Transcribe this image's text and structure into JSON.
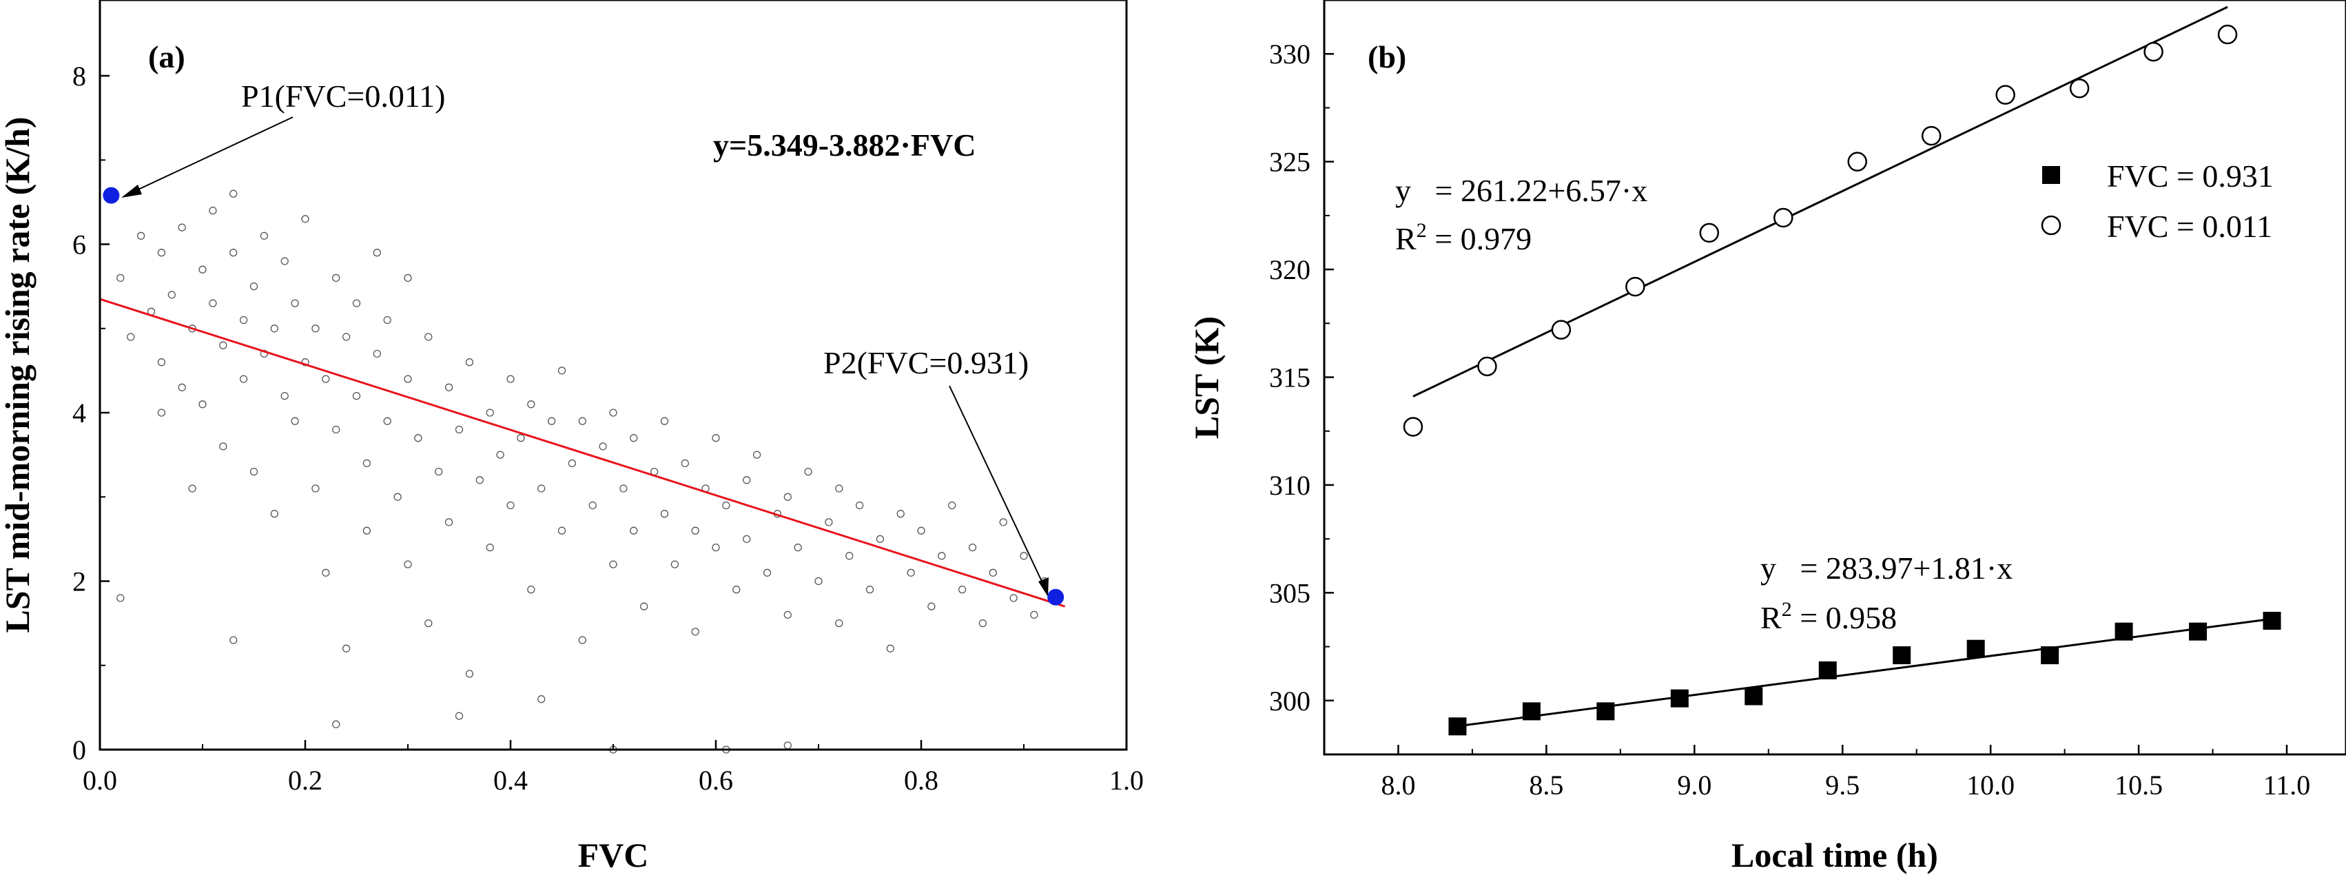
{
  "chart_data": [
    {
      "panel_label": "(a)",
      "type": "scatter",
      "xlabel": "FVC",
      "ylabel": "LST mid-morning rising rate (K/h)",
      "xlim": [
        0,
        1.0
      ],
      "ylim": [
        0,
        8.9
      ],
      "xticks": [
        "0.0",
        "0.2",
        "0.4",
        "0.6",
        "0.8",
        "1.0"
      ],
      "yticks": [
        "0",
        "2",
        "4",
        "6",
        "8"
      ],
      "fit_equation": "y=5.349-3.882·FVC",
      "fit": {
        "intercept": 5.349,
        "slope": -3.882,
        "x_range": [
          0.0,
          0.94
        ],
        "color": "#e8141c"
      },
      "marker_color": "#555555",
      "highlight_color": "#1020e0",
      "highlights": [
        {
          "label": "P1(FVC=0.011)",
          "x": 0.011,
          "y": 6.58
        },
        {
          "label": "P2(FVC=0.931)",
          "x": 0.931,
          "y": 1.81
        }
      ],
      "scatter_points": [
        [
          0.02,
          5.6
        ],
        [
          0.03,
          4.9
        ],
        [
          0.04,
          6.1
        ],
        [
          0.05,
          5.2
        ],
        [
          0.06,
          4.6
        ],
        [
          0.06,
          5.9
        ],
        [
          0.07,
          5.4
        ],
        [
          0.08,
          4.3
        ],
        [
          0.08,
          6.2
        ],
        [
          0.09,
          5.0
        ],
        [
          0.1,
          5.7
        ],
        [
          0.1,
          4.1
        ],
        [
          0.11,
          6.4
        ],
        [
          0.11,
          5.3
        ],
        [
          0.12,
          3.6
        ],
        [
          0.12,
          4.8
        ],
        [
          0.13,
          5.9
        ],
        [
          0.13,
          6.6
        ],
        [
          0.14,
          4.4
        ],
        [
          0.14,
          5.1
        ],
        [
          0.15,
          3.3
        ],
        [
          0.15,
          5.5
        ],
        [
          0.16,
          6.1
        ],
        [
          0.16,
          4.7
        ],
        [
          0.17,
          2.8
        ],
        [
          0.17,
          5.0
        ],
        [
          0.18,
          5.8
        ],
        [
          0.18,
          4.2
        ],
        [
          0.19,
          3.9
        ],
        [
          0.19,
          5.3
        ],
        [
          0.2,
          4.6
        ],
        [
          0.2,
          6.3
        ],
        [
          0.21,
          3.1
        ],
        [
          0.21,
          5.0
        ],
        [
          0.22,
          4.4
        ],
        [
          0.22,
          2.1
        ],
        [
          0.23,
          5.6
        ],
        [
          0.23,
          3.8
        ],
        [
          0.24,
          4.9
        ],
        [
          0.24,
          1.2
        ],
        [
          0.25,
          4.2
        ],
        [
          0.25,
          5.3
        ],
        [
          0.26,
          3.4
        ],
        [
          0.26,
          2.6
        ],
        [
          0.27,
          4.7
        ],
        [
          0.28,
          3.9
        ],
        [
          0.28,
          5.1
        ],
        [
          0.29,
          3.0
        ],
        [
          0.3,
          4.4
        ],
        [
          0.3,
          2.2
        ],
        [
          0.31,
          3.7
        ],
        [
          0.32,
          4.9
        ],
        [
          0.32,
          1.5
        ],
        [
          0.33,
          3.3
        ],
        [
          0.34,
          4.3
        ],
        [
          0.34,
          2.7
        ],
        [
          0.35,
          3.8
        ],
        [
          0.36,
          4.6
        ],
        [
          0.36,
          0.9
        ],
        [
          0.37,
          3.2
        ],
        [
          0.38,
          2.4
        ],
        [
          0.38,
          4.0
        ],
        [
          0.39,
          3.5
        ],
        [
          0.4,
          4.4
        ],
        [
          0.4,
          2.9
        ],
        [
          0.41,
          3.7
        ],
        [
          0.42,
          1.9
        ],
        [
          0.42,
          4.1
        ],
        [
          0.43,
          3.1
        ],
        [
          0.44,
          3.9
        ],
        [
          0.45,
          2.6
        ],
        [
          0.45,
          4.5
        ],
        [
          0.46,
          3.4
        ],
        [
          0.47,
          1.3
        ],
        [
          0.47,
          3.9
        ],
        [
          0.48,
          2.9
        ],
        [
          0.49,
          3.6
        ],
        [
          0.5,
          2.2
        ],
        [
          0.5,
          4.0
        ],
        [
          0.51,
          3.1
        ],
        [
          0.52,
          2.6
        ],
        [
          0.52,
          3.7
        ],
        [
          0.53,
          1.7
        ],
        [
          0.54,
          3.3
        ],
        [
          0.55,
          2.8
        ],
        [
          0.55,
          3.9
        ],
        [
          0.56,
          2.2
        ],
        [
          0.57,
          3.4
        ],
        [
          0.58,
          2.6
        ],
        [
          0.58,
          1.4
        ],
        [
          0.59,
          3.1
        ],
        [
          0.6,
          2.4
        ],
        [
          0.6,
          3.7
        ],
        [
          0.61,
          2.9
        ],
        [
          0.62,
          1.9
        ],
        [
          0.63,
          3.2
        ],
        [
          0.63,
          2.5
        ],
        [
          0.64,
          3.5
        ],
        [
          0.65,
          2.1
        ],
        [
          0.66,
          2.8
        ],
        [
          0.67,
          1.6
        ],
        [
          0.67,
          3.0
        ],
        [
          0.68,
          2.4
        ],
        [
          0.69,
          3.3
        ],
        [
          0.7,
          2.0
        ],
        [
          0.71,
          2.7
        ],
        [
          0.72,
          1.5
        ],
        [
          0.72,
          3.1
        ],
        [
          0.73,
          2.3
        ],
        [
          0.74,
          2.9
        ],
        [
          0.75,
          1.9
        ],
        [
          0.76,
          2.5
        ],
        [
          0.77,
          1.2
        ],
        [
          0.78,
          2.8
        ],
        [
          0.79,
          2.1
        ],
        [
          0.8,
          2.6
        ],
        [
          0.81,
          1.7
        ],
        [
          0.82,
          2.3
        ],
        [
          0.83,
          2.9
        ],
        [
          0.84,
          1.9
        ],
        [
          0.85,
          2.4
        ],
        [
          0.86,
          1.5
        ],
        [
          0.87,
          2.1
        ],
        [
          0.88,
          2.7
        ],
        [
          0.89,
          1.8
        ],
        [
          0.9,
          2.3
        ],
        [
          0.91,
          1.6
        ],
        [
          0.92,
          2.0
        ],
        [
          0.35,
          0.4
        ],
        [
          0.5,
          0.0
        ],
        [
          0.61,
          0.0
        ],
        [
          0.67,
          0.05
        ],
        [
          0.43,
          0.6
        ],
        [
          0.23,
          0.3
        ],
        [
          0.02,
          1.8
        ],
        [
          0.13,
          1.3
        ],
        [
          0.09,
          3.1
        ],
        [
          0.06,
          4.0
        ],
        [
          0.27,
          5.9
        ],
        [
          0.3,
          5.6
        ]
      ]
    },
    {
      "panel_label": "(b)",
      "type": "scatter",
      "xlabel": "Local time (h)",
      "ylabel": "LST (K)",
      "xlim": [
        7.75,
        11.2
      ],
      "ylim": [
        297.5,
        332.5
      ],
      "xticks": [
        "8.0",
        "8.5",
        "9.0",
        "9.5",
        "10.0",
        "10.5",
        "11.0"
      ],
      "yticks": [
        "300",
        "305",
        "310",
        "315",
        "320",
        "325",
        "330"
      ],
      "series": [
        {
          "name": "FVC = 0.931",
          "marker": "filled-square",
          "x": [
            8.2,
            8.45,
            8.7,
            8.95,
            9.2,
            9.45,
            9.7,
            9.95,
            10.2,
            10.45,
            10.7,
            10.95
          ],
          "values": [
            298.8,
            299.5,
            299.5,
            300.1,
            300.2,
            301.4,
            302.1,
            302.4,
            302.1,
            303.2,
            303.2,
            303.7
          ],
          "fit": {
            "intercept": 283.97,
            "slope": 1.81,
            "x_range": [
              8.2,
              10.95
            ]
          },
          "fit_equation": "y   = 283.97+1.81·x",
          "r2_label": "R",
          "r2_sup": "2",
          "r2_value": " = 0.958"
        },
        {
          "name": "FVC = 0.011",
          "marker": "open-circle",
          "x": [
            8.05,
            8.3,
            8.55,
            8.8,
            9.05,
            9.3,
            9.55,
            9.8,
            10.05,
            10.3,
            10.55,
            10.8
          ],
          "values": [
            312.7,
            315.5,
            317.2,
            319.2,
            321.7,
            322.4,
            325.0,
            326.2,
            328.1,
            328.4,
            330.1,
            330.9
          ],
          "fit": {
            "intercept": 261.22,
            "slope": 6.57,
            "x_range": [
              8.05,
              10.8
            ]
          },
          "fit_equation": "y   = 261.22+6.57·x",
          "r2_label": "R",
          "r2_sup": "2",
          "r2_value": " = 0.979"
        }
      ]
    }
  ]
}
